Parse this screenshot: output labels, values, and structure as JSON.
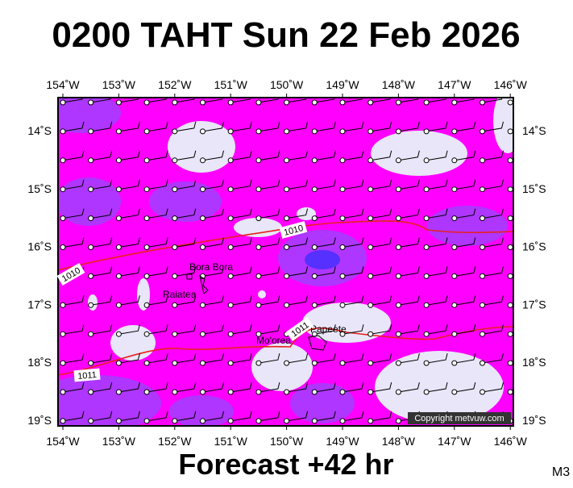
{
  "header": {
    "title": "0200 TAHT Sun 22 Feb 2026"
  },
  "map": {
    "longitude_labels": [
      "154˚W",
      "153˚W",
      "152˚W",
      "151˚W",
      "150˚W",
      "149˚W",
      "148˚W",
      "147˚W",
      "146˚W"
    ],
    "latitude_labels": [
      "14˚S",
      "15˚S",
      "16˚S",
      "17˚S",
      "18˚S",
      "19˚S"
    ],
    "places": [
      "Bora Bora",
      "Raiatea",
      "Mo'orea",
      "Papeete"
    ],
    "isobar_labels": [
      "1010",
      "1010",
      "1011",
      "1011"
    ],
    "copyright": "Copyright metvuw.com"
  },
  "footer": {
    "caption": "Forecast +42 hr",
    "code": "M3"
  }
}
